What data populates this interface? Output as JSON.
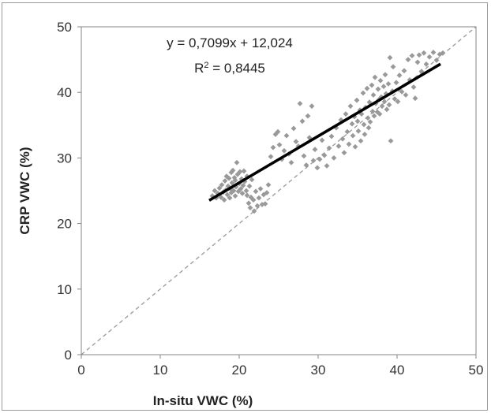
{
  "chart_data": {
    "type": "scatter",
    "xlabel": "In-situ VWC (%)",
    "ylabel": "CRP VWC (%)",
    "xlim": [
      0,
      50
    ],
    "ylim": [
      0,
      50
    ],
    "x_ticks": [
      "0",
      "10",
      "20",
      "30",
      "40",
      "50"
    ],
    "y_ticks": [
      "0",
      "10",
      "20",
      "30",
      "40",
      "50"
    ],
    "grid": false,
    "annotations": {
      "equation": "y = 0,7099x + 12,024",
      "r2_prefix": "R",
      "r2_sup": "2",
      "r2_value": " = 0,8445"
    },
    "trendline": {
      "slope": 0.7099,
      "intercept": 12.024,
      "x_range": [
        16.2,
        45.5
      ],
      "color": "#000000"
    },
    "reference_line": {
      "type": "1:1",
      "x_range": [
        0,
        50
      ],
      "color": "#999999"
    },
    "marker_color": "#999999",
    "series": [
      {
        "points": [
          [
            16.6,
            24.2
          ],
          [
            16.9,
            25.0
          ],
          [
            17.1,
            23.9
          ],
          [
            17.3,
            24.6
          ],
          [
            17.5,
            25.4
          ],
          [
            17.7,
            24.0
          ],
          [
            17.8,
            25.9
          ],
          [
            18.0,
            24.8
          ],
          [
            18.1,
            23.6
          ],
          [
            18.2,
            26.5
          ],
          [
            18.3,
            25.1
          ],
          [
            18.4,
            27.2
          ],
          [
            18.5,
            24.4
          ],
          [
            18.6,
            25.7
          ],
          [
            18.7,
            26.9
          ],
          [
            18.8,
            23.9
          ],
          [
            18.9,
            25.3
          ],
          [
            19.0,
            27.8
          ],
          [
            19.0,
            24.7
          ],
          [
            19.1,
            26.2
          ],
          [
            19.2,
            28.1
          ],
          [
            19.3,
            25.0
          ],
          [
            19.4,
            27.0
          ],
          [
            19.5,
            24.2
          ],
          [
            19.5,
            26.6
          ],
          [
            19.6,
            25.6
          ],
          [
            19.7,
            29.3
          ],
          [
            19.8,
            27.5
          ],
          [
            19.9,
            24.9
          ],
          [
            20.0,
            26.1
          ],
          [
            20.1,
            27.9
          ],
          [
            20.2,
            25.3
          ],
          [
            20.3,
            26.8
          ],
          [
            20.4,
            24.6
          ],
          [
            20.5,
            25.8
          ],
          [
            20.6,
            28.0
          ],
          [
            20.7,
            26.4
          ],
          [
            20.9,
            25.0
          ],
          [
            21.0,
            27.2
          ],
          [
            21.0,
            24.3
          ],
          [
            21.2,
            23.1
          ],
          [
            21.3,
            25.7
          ],
          [
            21.4,
            22.4
          ],
          [
            21.5,
            24.0
          ],
          [
            21.6,
            26.7
          ],
          [
            21.8,
            23.6
          ],
          [
            21.9,
            21.9
          ],
          [
            22.1,
            24.9
          ],
          [
            22.3,
            22.7
          ],
          [
            22.5,
            23.9
          ],
          [
            22.7,
            25.3
          ],
          [
            22.9,
            22.9
          ],
          [
            23.1,
            24.4
          ],
          [
            23.3,
            23.0
          ],
          [
            23.5,
            24.7
          ],
          [
            23.7,
            25.9
          ],
          [
            24.0,
            30.2
          ],
          [
            24.3,
            31.6
          ],
          [
            24.6,
            33.6
          ],
          [
            24.9,
            34.0
          ],
          [
            25.1,
            32.0
          ],
          [
            25.4,
            29.8
          ],
          [
            25.7,
            31.1
          ],
          [
            26.0,
            33.4
          ],
          [
            26.3,
            30.6
          ],
          [
            26.6,
            29.3
          ],
          [
            26.9,
            34.5
          ],
          [
            27.2,
            32.5
          ],
          [
            27.5,
            31.8
          ],
          [
            27.7,
            38.3
          ],
          [
            28.0,
            35.6
          ],
          [
            28.2,
            30.3
          ],
          [
            28.5,
            28.9
          ],
          [
            28.7,
            36.4
          ],
          [
            28.9,
            33.1
          ],
          [
            29.2,
            37.9
          ],
          [
            29.4,
            29.6
          ],
          [
            29.6,
            31.3
          ],
          [
            29.9,
            28.5
          ],
          [
            30.2,
            29.8
          ],
          [
            30.5,
            32.7
          ],
          [
            30.8,
            30.4
          ],
          [
            31.1,
            28.8
          ],
          [
            31.4,
            31.5
          ],
          [
            31.7,
            33.3
          ],
          [
            32.0,
            30.0
          ],
          [
            32.3,
            34.6
          ],
          [
            32.6,
            31.8
          ],
          [
            32.9,
            35.8
          ],
          [
            33.1,
            32.9
          ],
          [
            33.3,
            30.8
          ],
          [
            33.5,
            36.7
          ],
          [
            33.7,
            34.0
          ],
          [
            33.9,
            32.1
          ],
          [
            34.1,
            37.9
          ],
          [
            34.3,
            35.2
          ],
          [
            34.4,
            33.4
          ],
          [
            34.6,
            36.3
          ],
          [
            34.7,
            31.7
          ],
          [
            34.9,
            38.8
          ],
          [
            35.0,
            35.6
          ],
          [
            35.1,
            34.1
          ],
          [
            35.3,
            37.3
          ],
          [
            35.4,
            32.6
          ],
          [
            35.5,
            36.7
          ],
          [
            35.7,
            39.9
          ],
          [
            35.8,
            35.1
          ],
          [
            35.9,
            33.6
          ],
          [
            36.0,
            37.7
          ],
          [
            36.2,
            40.6
          ],
          [
            36.3,
            36.1
          ],
          [
            36.4,
            34.6
          ],
          [
            36.5,
            38.5
          ],
          [
            36.6,
            35.5
          ],
          [
            36.8,
            41.1
          ],
          [
            36.9,
            37.1
          ],
          [
            37.0,
            39.6
          ],
          [
            37.1,
            36.4
          ],
          [
            37.2,
            42.3
          ],
          [
            37.3,
            38.3
          ],
          [
            37.5,
            37.0
          ],
          [
            37.6,
            40.5
          ],
          [
            37.7,
            38.9
          ],
          [
            37.8,
            36.7
          ],
          [
            37.9,
            41.8
          ],
          [
            38.0,
            39.3
          ],
          [
            38.1,
            37.9
          ],
          [
            38.3,
            40.9
          ],
          [
            38.4,
            38.6
          ],
          [
            38.5,
            42.7
          ],
          [
            38.6,
            39.8
          ],
          [
            38.7,
            37.4
          ],
          [
            38.9,
            41.3
          ],
          [
            39.0,
            38.1
          ],
          [
            39.1,
            45.3
          ],
          [
            39.2,
            32.6
          ],
          [
            39.4,
            40.2
          ],
          [
            39.5,
            43.9
          ],
          [
            39.7,
            39.0
          ],
          [
            39.9,
            41.5
          ],
          [
            40.1,
            38.6
          ],
          [
            40.3,
            42.6
          ],
          [
            40.6,
            40.1
          ],
          [
            40.9,
            43.3
          ],
          [
            41.1,
            39.6
          ],
          [
            41.4,
            45.0
          ],
          [
            41.6,
            41.9
          ],
          [
            41.9,
            45.6
          ],
          [
            42.1,
            40.8
          ],
          [
            42.3,
            39.1
          ],
          [
            42.6,
            44.6
          ],
          [
            42.8,
            45.7
          ],
          [
            43.1,
            43.2
          ],
          [
            43.4,
            46.0
          ],
          [
            43.7,
            44.3
          ],
          [
            44.1,
            45.4
          ],
          [
            44.6,
            46.1
          ],
          [
            45.0,
            44.9
          ],
          [
            45.4,
            45.8
          ],
          [
            45.8,
            46.0
          ]
        ]
      }
    ]
  }
}
